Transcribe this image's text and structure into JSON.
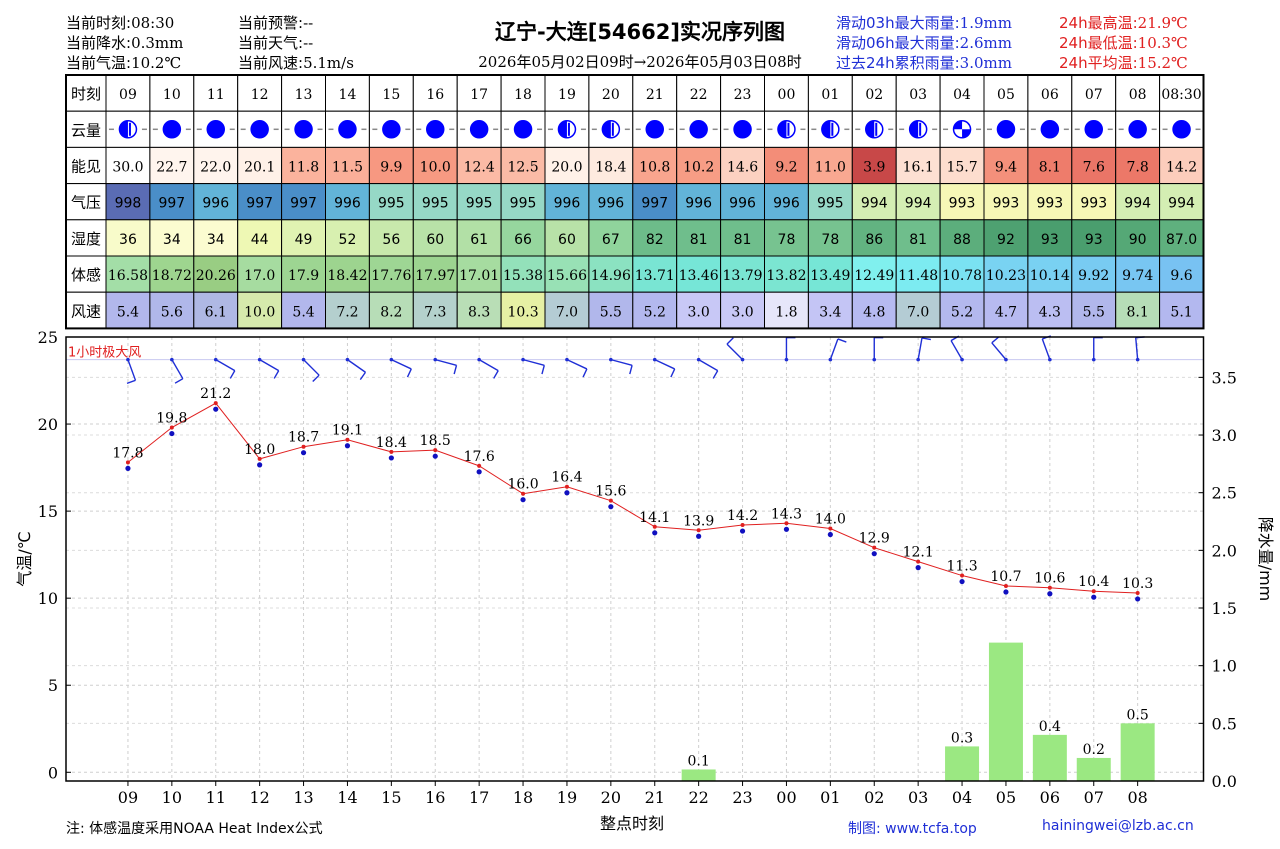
{
  "header": {
    "left": [
      {
        "label": "当前时刻:",
        "value": "08:30"
      },
      {
        "label": "当前降水:",
        "value": "0.3mm"
      },
      {
        "label": "当前气温:",
        "value": "10.2℃"
      }
    ],
    "mid": [
      {
        "label": "当前预警:",
        "value": "--"
      },
      {
        "label": "当前天气:",
        "value": "--"
      },
      {
        "label": "当前风速:",
        "value": "5.1m/s"
      }
    ],
    "title": "辽宁-大连[54662]实况序列图",
    "subtitle": "2026年05月02日09时→2026年05月03日08时",
    "rain_stats": [
      {
        "label": "滑动03h最大雨量:",
        "value": "1.9mm"
      },
      {
        "label": "滑动06h最大雨量:",
        "value": "2.6mm"
      },
      {
        "label": "过去24h累积雨量:",
        "value": "3.0mm"
      }
    ],
    "temp_stats": [
      {
        "label": "24h最高温:",
        "value": "21.9℃"
      },
      {
        "label": "24h最低温:",
        "value": "10.3℃"
      },
      {
        "label": "24h平均温:",
        "value": "15.2℃"
      }
    ],
    "colors": {
      "blue": "#1f2fd6",
      "red": "#e02020"
    }
  },
  "table": {
    "row_labels": [
      "时刻",
      "云量",
      "能见",
      "气压",
      "湿度",
      "体感",
      "风速"
    ],
    "hours": [
      "09",
      "10",
      "11",
      "12",
      "13",
      "14",
      "15",
      "16",
      "17",
      "18",
      "19",
      "20",
      "21",
      "22",
      "23",
      "00",
      "01",
      "02",
      "03",
      "04",
      "05",
      "06",
      "07",
      "08",
      "08:30"
    ],
    "cloud": [
      0.5,
      1,
      1,
      1,
      1,
      1,
      1,
      1,
      1,
      1,
      0.5,
      0.5,
      1,
      1,
      1,
      0.5,
      0.5,
      0.5,
      0.5,
      0.25,
      1,
      1,
      1,
      1,
      1
    ],
    "visibility": [
      "30.0",
      "22.7",
      "22.0",
      "20.1",
      "11.8",
      "11.5",
      "9.9",
      "10.0",
      "12.4",
      "12.5",
      "20.0",
      "18.4",
      "10.8",
      "10.2",
      "14.6",
      "9.2",
      "11.0",
      "3.9",
      "16.1",
      "15.7",
      "9.4",
      "8.1",
      "7.6",
      "7.8",
      "14.2"
    ],
    "pressure": [
      "998",
      "997",
      "996",
      "997",
      "997",
      "996",
      "995",
      "995",
      "995",
      "995",
      "996",
      "996",
      "997",
      "996",
      "996",
      "996",
      "995",
      "994",
      "994",
      "993",
      "993",
      "993",
      "993",
      "994",
      "994"
    ],
    "humidity": [
      "36",
      "34",
      "34",
      "44",
      "49",
      "52",
      "56",
      "60",
      "61",
      "66",
      "60",
      "67",
      "82",
      "81",
      "81",
      "78",
      "78",
      "86",
      "81",
      "88",
      "92",
      "93",
      "93",
      "90",
      "87.0"
    ],
    "feels_like": [
      "16.58",
      "18.72",
      "20.26",
      "17.0",
      "17.9",
      "18.42",
      "17.76",
      "17.97",
      "17.01",
      "15.38",
      "15.66",
      "14.96",
      "13.71",
      "13.46",
      "13.79",
      "13.82",
      "13.49",
      "12.49",
      "11.48",
      "10.78",
      "10.23",
      "10.14",
      "9.92",
      "9.74",
      "9.6"
    ],
    "wind_speed": [
      "5.4",
      "5.6",
      "6.1",
      "10.0",
      "5.4",
      "7.2",
      "8.2",
      "7.3",
      "8.3",
      "10.3",
      "7.0",
      "5.5",
      "5.2",
      "3.0",
      "3.0",
      "1.8",
      "3.4",
      "4.8",
      "7.0",
      "5.2",
      "4.7",
      "4.3",
      "5.5",
      "8.1",
      "5.1"
    ]
  },
  "chart_data": {
    "type": "line",
    "x": [
      "09",
      "10",
      "11",
      "12",
      "13",
      "14",
      "15",
      "16",
      "17",
      "18",
      "19",
      "20",
      "21",
      "22",
      "23",
      "00",
      "01",
      "02",
      "03",
      "04",
      "05",
      "06",
      "07",
      "08"
    ],
    "series": [
      {
        "values": [
          17.8,
          19.8,
          21.2,
          18.0,
          18.7,
          19.1,
          18.4,
          18.5,
          17.6,
          16.0,
          16.4,
          15.6,
          14.1,
          13.9,
          14.2,
          14.3,
          14.0,
          12.9,
          12.1,
          11.3,
          10.7,
          10.6,
          10.4,
          10.3
        ],
        "color": "#e02020"
      }
    ],
    "precipitation": [
      0,
      0,
      0,
      0,
      0,
      0,
      0,
      0,
      0,
      0,
      0,
      0,
      0,
      0.1,
      0,
      0,
      0,
      0,
      0,
      0.3,
      1.2,
      0.4,
      0.2,
      0.5
    ],
    "precip_labels": [
      "",
      "",
      "",
      "",
      "",
      "",
      "",
      "",
      "",
      "",
      "",
      "",
      "",
      "0.1",
      "",
      "",
      "",
      "",
      "",
      "0.3",
      "",
      "0.4",
      "0.2",
      "0.5"
    ],
    "precip_color": "#9be882",
    "wind_dir_deg": [
      340,
      330,
      300,
      300,
      315,
      305,
      295,
      285,
      300,
      285,
      295,
      285,
      295,
      300,
      135,
      180,
      200,
      180,
      190,
      150,
      140,
      160,
      180,
      175
    ],
    "gust_label": "1小时极大风",
    "xlabel": "整点时刻",
    "ylabel": "气温/℃",
    "y2label": "降水量/mm",
    "ylim": [
      -0.5,
      25
    ],
    "y_ticks": [
      0,
      5,
      10,
      15,
      20,
      25
    ],
    "y2lim": [
      0,
      3.85
    ],
    "y2_ticks": [
      "0.0",
      "0.5",
      "1.0",
      "1.5",
      "2.0",
      "2.5",
      "3.0",
      "3.5"
    ],
    "grid": true
  },
  "footer": {
    "note": "注: 体感温度采用NOAA Heat Index公式",
    "credit": "制图: www.tcfa.top",
    "email": "hainingwei@lzb.ac.cn"
  }
}
